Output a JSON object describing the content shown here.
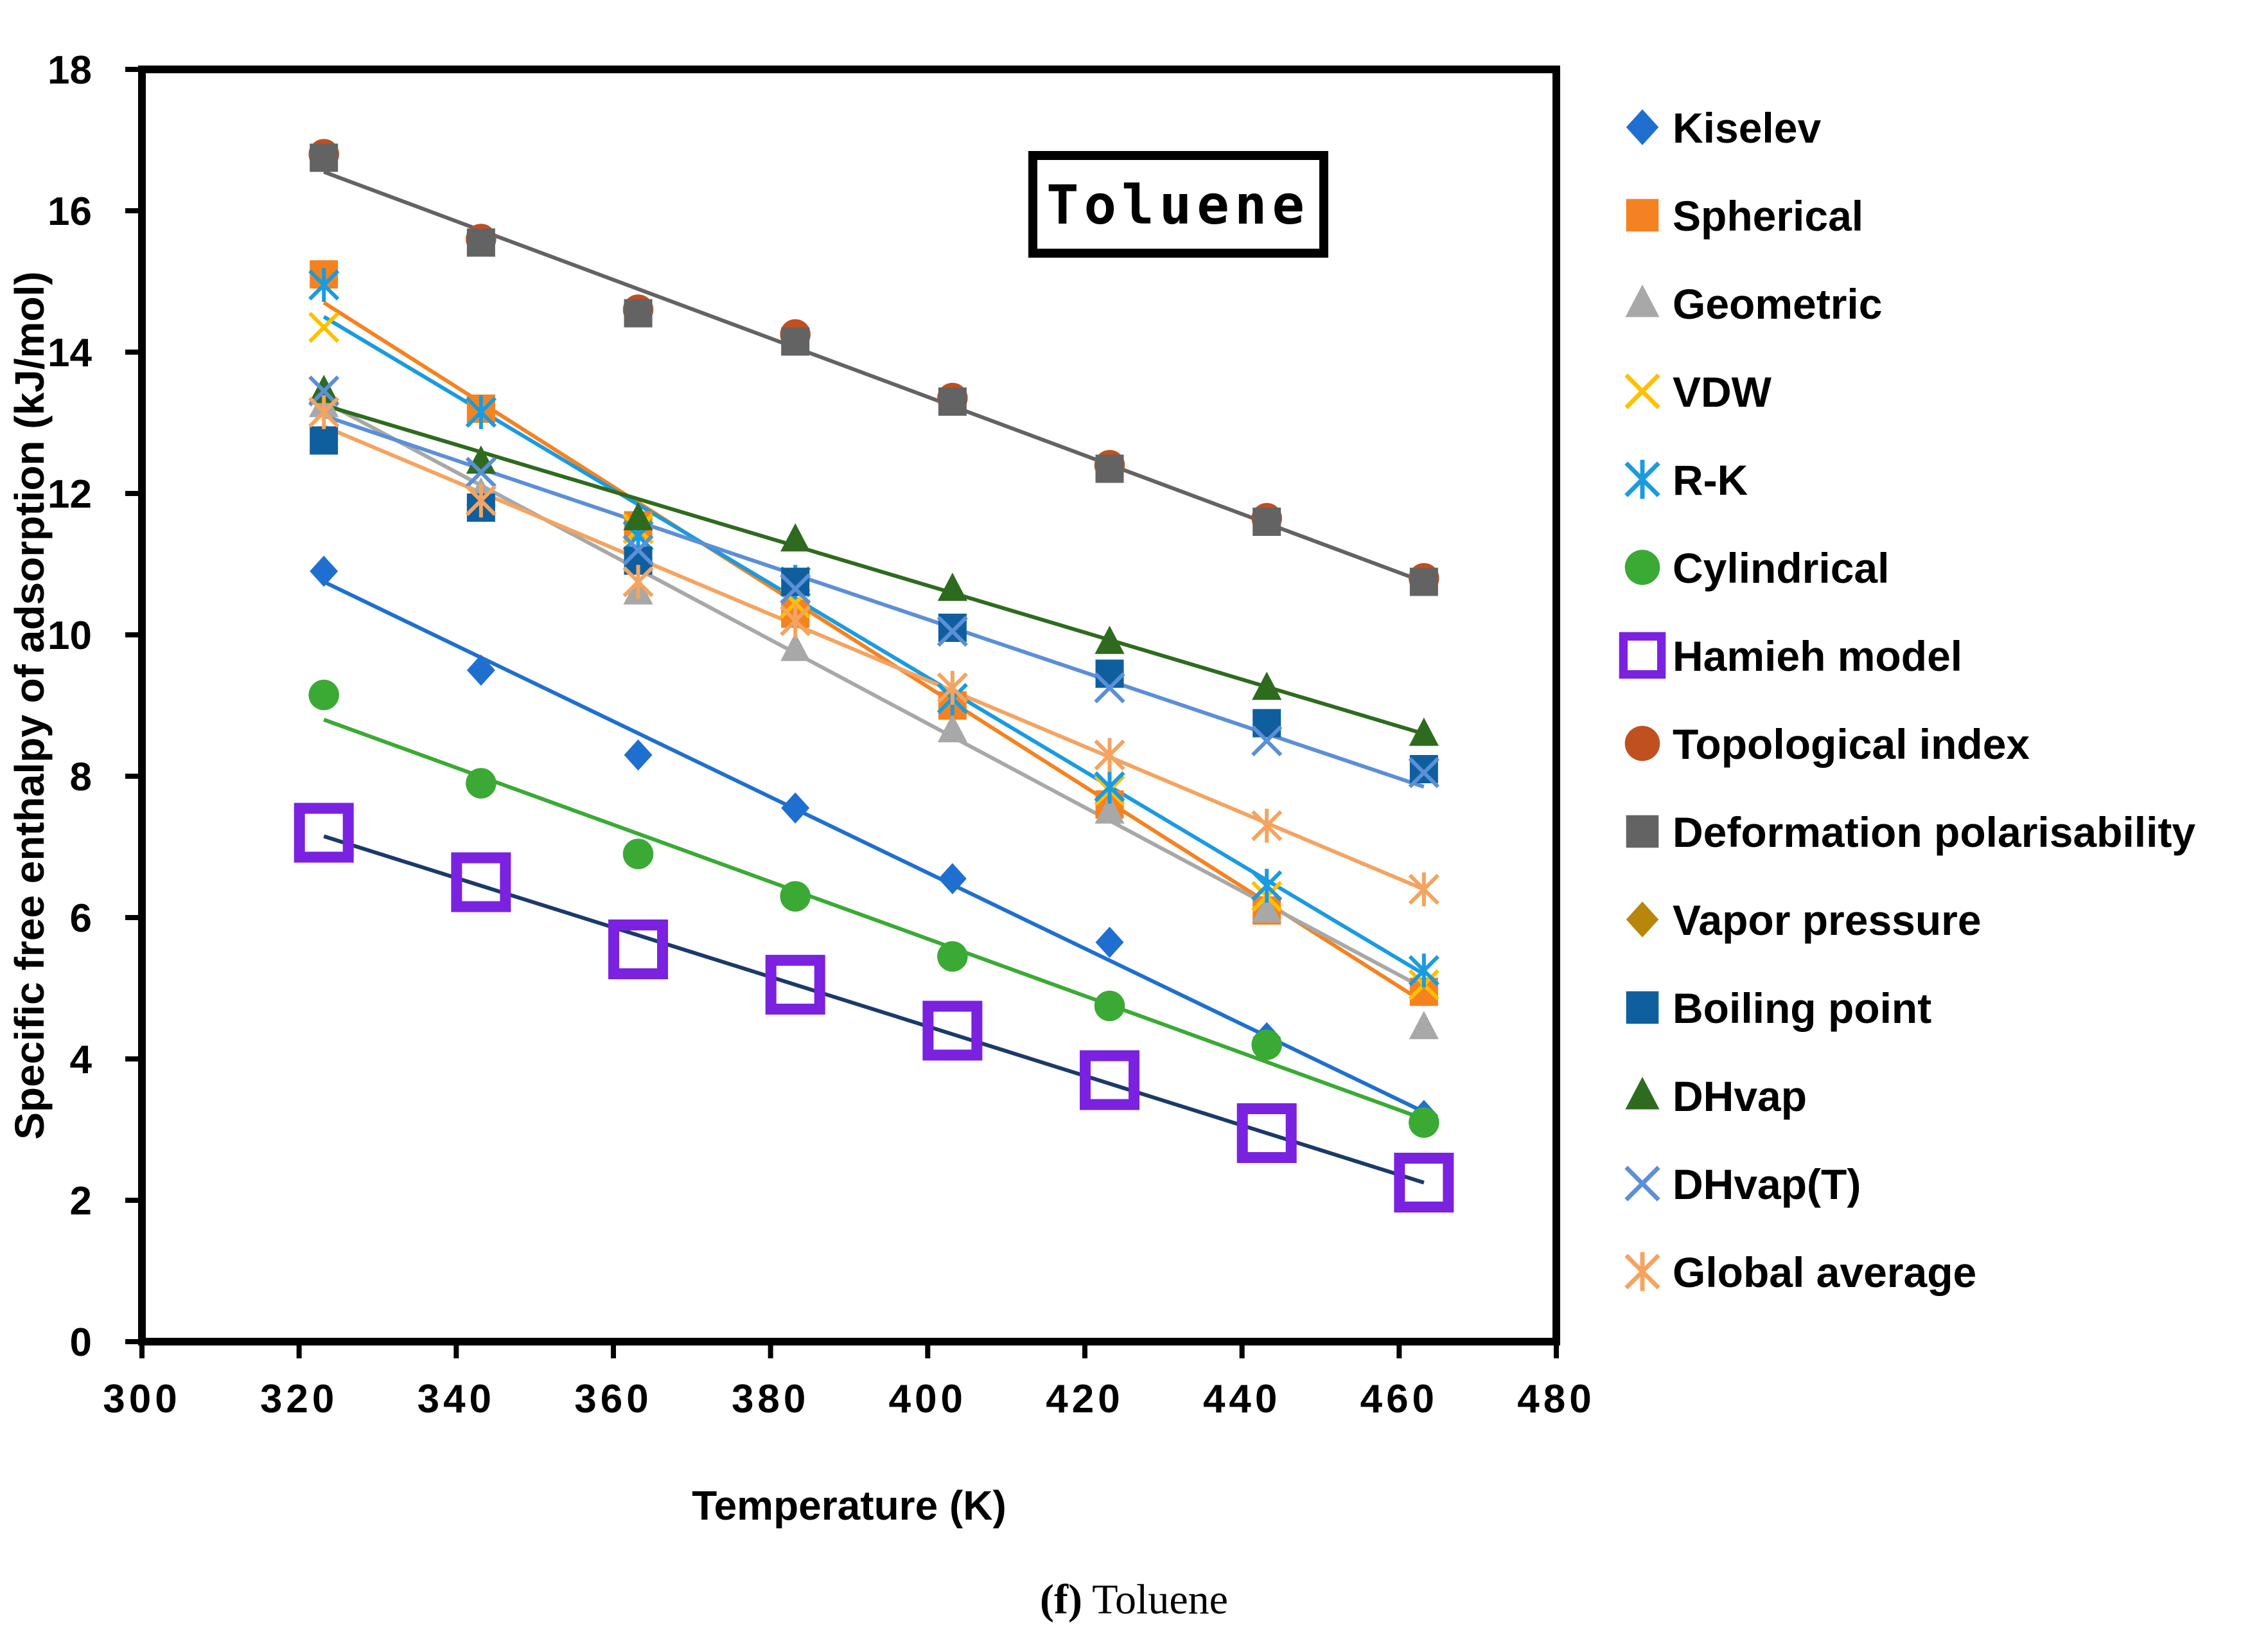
{
  "caption": {
    "letter": "(f)",
    "text": " Toluene"
  },
  "chart_data": {
    "type": "scatter",
    "annotation": "Toluene",
    "xlabel": "Temperature (K)",
    "ylabel": "Specific free enthalpy of adsorption (kJ/mol)",
    "xlim": [
      300,
      480
    ],
    "ylim": [
      0,
      18
    ],
    "xticks": [
      300,
      320,
      340,
      360,
      380,
      400,
      420,
      440,
      460,
      480
    ],
    "yticks": [
      0,
      2,
      4,
      6,
      8,
      10,
      12,
      14,
      16,
      18
    ],
    "legend_position": "right",
    "grid": false,
    "x": [
      323.15,
      343.15,
      363.15,
      383.15,
      403.15,
      423.15,
      443.15,
      463.15
    ],
    "series": [
      {
        "name": "Kiselev",
        "marker": "diamond",
        "color": "#1f6fd0",
        "values": [
          10.9,
          9.5,
          8.3,
          7.55,
          6.55,
          5.65,
          4.3,
          3.2
        ]
      },
      {
        "name": "Spherical",
        "marker": "square",
        "color": "#f58220",
        "values": [
          15.1,
          13.2,
          11.55,
          10.3,
          9.0,
          7.6,
          6.1,
          4.95
        ]
      },
      {
        "name": "Geometric",
        "marker": "triangle",
        "color": "#a8a8a8",
        "values": [
          13.25,
          12.0,
          10.6,
          9.8,
          8.65,
          7.5,
          6.1,
          4.45
        ]
      },
      {
        "name": "VDW",
        "marker": "x",
        "color": "#ffc000",
        "values": [
          14.35,
          13.15,
          11.5,
          10.45,
          9.1,
          7.8,
          6.3,
          5.05
        ]
      },
      {
        "name": "R-K",
        "marker": "star",
        "color": "#1a9be0",
        "values": [
          14.95,
          13.15,
          11.4,
          10.75,
          9.1,
          7.85,
          6.45,
          5.25
        ]
      },
      {
        "name": "Cylindrical",
        "marker": "circle",
        "color": "#3aaa35",
        "values": [
          9.15,
          7.9,
          6.9,
          6.3,
          5.45,
          4.75,
          4.2,
          3.1
        ]
      },
      {
        "name": "Hamieh model",
        "marker": "open-square",
        "color": "#7a22e0",
        "values": [
          7.2,
          6.5,
          5.55,
          5.05,
          4.4,
          3.7,
          2.95,
          2.25
        ]
      },
      {
        "name": "Topological index",
        "marker": "circle",
        "color": "#c0501f",
        "values": [
          16.8,
          15.6,
          14.6,
          14.25,
          13.35,
          12.4,
          11.65,
          10.8
        ]
      },
      {
        "name": "Deformation polarisability",
        "marker": "square",
        "color": "#636363",
        "values": [
          16.75,
          15.55,
          14.55,
          14.15,
          13.3,
          12.35,
          11.6,
          10.75
        ]
      },
      {
        "name": "Vapor pressure",
        "marker": "diamond",
        "color": "#b8860b",
        "values": []
      },
      {
        "name": "Boiling point",
        "marker": "square",
        "color": "#0f5f9f",
        "values": [
          12.75,
          11.8,
          11.05,
          10.75,
          10.1,
          9.45,
          8.75,
          8.1
        ]
      },
      {
        "name": "DHvap",
        "marker": "triangle",
        "color": "#2e6b1e",
        "values": [
          13.45,
          12.45,
          11.65,
          11.35,
          10.65,
          9.9,
          9.25,
          8.6
        ]
      },
      {
        "name": "DHvap(T)",
        "marker": "x",
        "color": "#5b8fd8",
        "values": [
          13.45,
          12.3,
          11.2,
          10.65,
          10.05,
          9.25,
          8.5,
          8.05
        ]
      },
      {
        "name": "Global average",
        "marker": "star",
        "color": "#f4a460",
        "values": [
          13.15,
          11.9,
          10.75,
          10.2,
          9.25,
          8.3,
          7.3,
          6.4
        ]
      }
    ],
    "fit_lines": [
      {
        "series": "Kiselev",
        "y_start": 10.75,
        "y_end": 3.25,
        "color": "#1f6fd0"
      },
      {
        "series": "Spherical",
        "y_start": 14.7,
        "y_end": 4.8,
        "color": "#f58220"
      },
      {
        "series": "Geometric",
        "y_start": 13.3,
        "y_end": 5.0,
        "color": "#a8a8a8"
      },
      {
        "series": "R-K",
        "y_start": 14.5,
        "y_end": 5.2,
        "color": "#1a9be0"
      },
      {
        "series": "Cylindrical",
        "y_start": 8.8,
        "y_end": 3.15,
        "color": "#3aaa35"
      },
      {
        "series": "Hamieh model",
        "y_start": 7.15,
        "y_end": 2.25,
        "color": "#1b3a6b"
      },
      {
        "series": "Deformation polarisability",
        "y_start": 16.55,
        "y_end": 10.75,
        "color": "#636363"
      },
      {
        "series": "DHvap",
        "y_start": 13.25,
        "y_end": 8.6,
        "color": "#2e6b1e"
      },
      {
        "series": "DHvap(T)",
        "y_start": 13.1,
        "y_end": 7.85,
        "color": "#5b8fd8"
      },
      {
        "series": "Global average",
        "y_start": 12.95,
        "y_end": 6.4,
        "color": "#f4a460"
      }
    ]
  }
}
